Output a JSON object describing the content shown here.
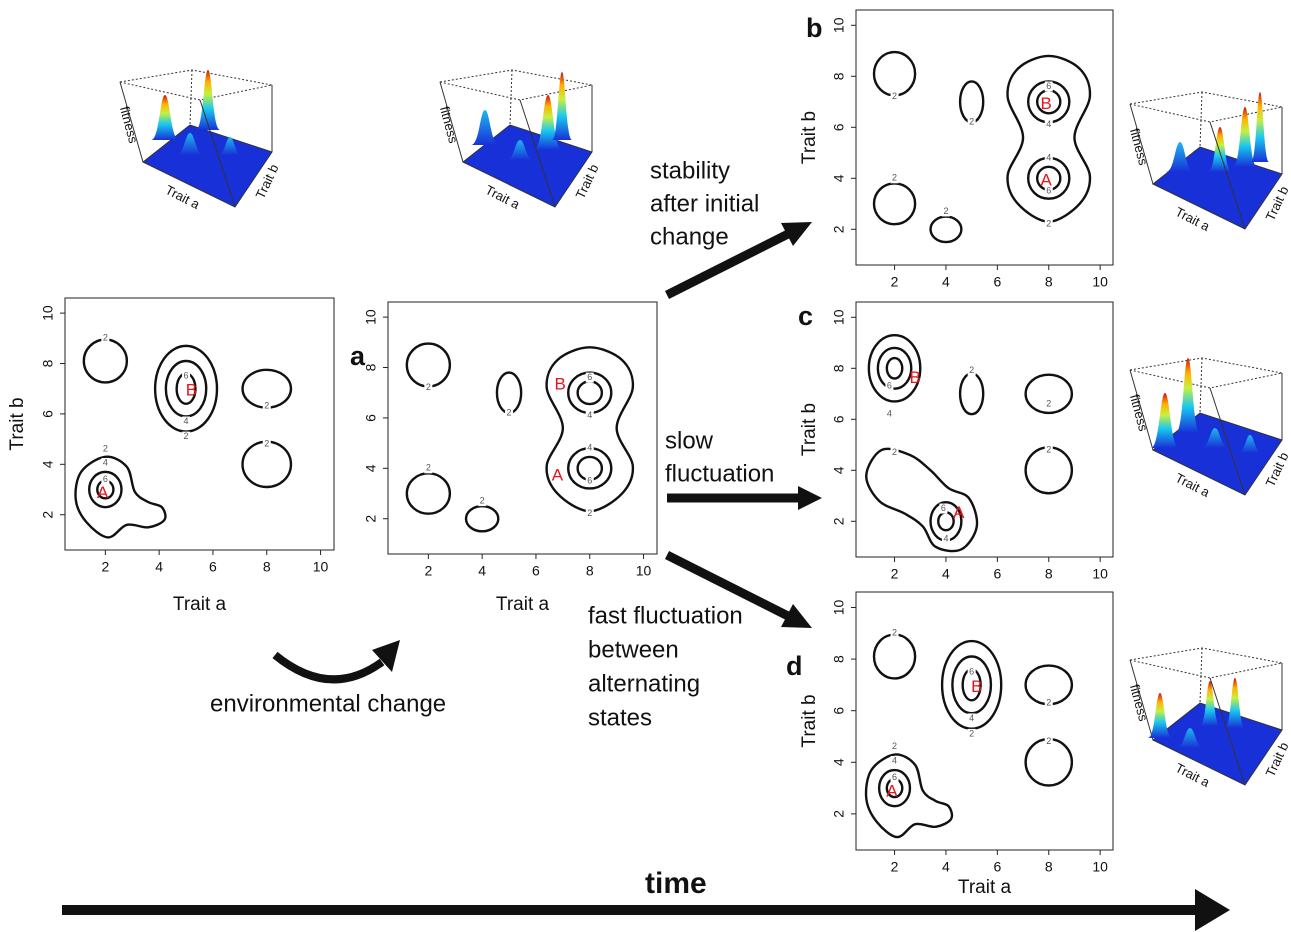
{
  "panels": [
    {
      "x_label": "Trait a",
      "y_label": "Trait b",
      "x_ticks": [
        2,
        4,
        6,
        8,
        10
      ],
      "y_ticks": [
        2,
        4,
        6,
        8,
        10
      ],
      "peaks": [
        "A",
        "B"
      ],
      "contour_labels": [
        "2",
        "2",
        "4",
        "6",
        "2",
        "2",
        "2",
        "4",
        "6"
      ]
    },
    {
      "letter": "a",
      "x_label": "Trait a",
      "x_ticks": [
        2,
        4,
        6,
        8,
        10
      ],
      "y_ticks": [
        2,
        4,
        6,
        8,
        10
      ],
      "peaks": [
        "A",
        "B"
      ],
      "contour_labels": [
        "2",
        "2",
        "2",
        "2",
        "6",
        "4",
        "4",
        "6",
        "2"
      ]
    },
    {
      "letter": "b",
      "y_label": "Trait b",
      "x_ticks": [
        2,
        4,
        6,
        8,
        10
      ],
      "y_ticks": [
        2,
        4,
        6,
        8,
        10
      ],
      "peaks": [
        "A",
        "B"
      ],
      "contour_labels": [
        "2",
        "2",
        "2",
        "2",
        "6",
        "4",
        "4",
        "6",
        "2"
      ]
    },
    {
      "letter": "c",
      "y_label": "Trait b",
      "x_ticks": [
        2,
        4,
        6,
        8,
        10
      ],
      "y_ticks": [
        2,
        4,
        6,
        8,
        10
      ],
      "peaks": [
        "A",
        "B"
      ],
      "contour_labels": [
        "6",
        "4",
        "2",
        "2",
        "2",
        "2",
        "6",
        "4"
      ]
    },
    {
      "letter": "d",
      "x_label": "Trait a",
      "y_label": "Trait b",
      "x_ticks": [
        2,
        4,
        6,
        8,
        10
      ],
      "y_ticks": [
        2,
        4,
        6,
        8,
        10
      ],
      "peaks": [
        "A",
        "B"
      ],
      "contour_labels": [
        "2",
        "2",
        "4",
        "6",
        "2",
        "2",
        "2",
        "4",
        "6"
      ]
    }
  ],
  "surfaces": [
    {
      "z_label": "fitness",
      "x_label": "Trait a",
      "y_label": "Trait b"
    },
    {
      "z_label": "fitness",
      "x_label": "Trait a",
      "y_label": "Trait b"
    },
    {
      "z_label": "fitness",
      "x_label": "Trait a",
      "y_label": "Trait b"
    },
    {
      "z_label": "fitness",
      "x_label": "Trait a",
      "y_label": "Trait b"
    },
    {
      "z_label": "fitness",
      "x_label": "Trait a",
      "y_label": "Trait b"
    }
  ],
  "annotations": {
    "stability": [
      "stability",
      "after initial",
      "change"
    ],
    "slow": [
      "slow",
      "fluctuation"
    ],
    "fast": [
      "fast fluctuation",
      "between",
      "alternating",
      "states"
    ],
    "environment": "environmental change",
    "time": "time"
  }
}
